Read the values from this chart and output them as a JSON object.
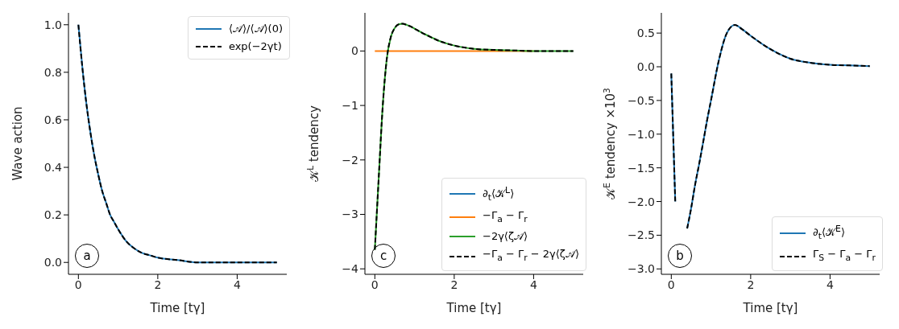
{
  "chart_data": [
    {
      "type": "line",
      "xlabel": "Time [tγ]",
      "ylabel": "Wave action",
      "annotations": [
        "a"
      ],
      "legend": "top right",
      "grid": false,
      "marker": "none",
      "xlim": [
        -0.25,
        5.25
      ],
      "xticks": [
        0,
        2,
        4
      ],
      "ylim": [
        -0.05,
        1.05
      ],
      "yticks": [
        {
          "value": 0,
          "label": "0.0"
        },
        {
          "value": 0.2,
          "label": "0.2"
        },
        {
          "value": 0.4,
          "label": "0.4"
        },
        {
          "value": 0.6,
          "label": "0.6"
        },
        {
          "value": 0.8,
          "label": "0.8"
        },
        {
          "value": 1,
          "label": "1.0"
        }
      ],
      "x": [
        0,
        0.1,
        0.2,
        0.3,
        0.4,
        0.5,
        0.6,
        0.7,
        0.8,
        0.9,
        1.0,
        1.2,
        1.4,
        1.6,
        1.8,
        2.0,
        2.5,
        3,
        3.5,
        4,
        4.5,
        5
      ],
      "series": [
        {
          "name": "⟨𝒜⟩/⟨𝒜⟩(0)",
          "color": "#1f77b4",
          "line_style": "solid",
          "values": [
            1,
            0.82,
            0.67,
            0.55,
            0.45,
            0.37,
            0.3,
            0.25,
            0.2,
            0.17,
            0.14,
            0.09,
            0.06,
            0.04,
            0.03,
            0.02,
            0.01,
            0,
            0,
            0,
            0,
            0
          ]
        },
        {
          "name": "exp(−2γt)",
          "color": "#000000",
          "line_style": "dashed",
          "values": [
            1,
            0.82,
            0.67,
            0.55,
            0.45,
            0.37,
            0.3,
            0.25,
            0.2,
            0.17,
            0.14,
            0.09,
            0.06,
            0.04,
            0.03,
            0.02,
            0.01,
            0,
            0,
            0,
            0,
            0
          ]
        }
      ]
    },
    {
      "type": "line",
      "xlabel": "Time [tγ]",
      "ylabel": "𝒦$^{L}$ tendency",
      "annotations": [
        "c"
      ],
      "legend": "bottom right",
      "grid": false,
      "marker": "none",
      "xlim": [
        -0.25,
        5.25
      ],
      "xticks": [
        0,
        2,
        4
      ],
      "ylim": [
        -4.1,
        0.7
      ],
      "yticks": [
        -4,
        -3,
        -2,
        -1,
        0
      ],
      "x": [
        0,
        0.1,
        0.2,
        0.3,
        0.4,
        0.5,
        0.6,
        0.7,
        0.8,
        0.9,
        1.0,
        1.2,
        1.4,
        1.6,
        1.8,
        2.0,
        2.5,
        3,
        3.5,
        4,
        4.5,
        5
      ],
      "series": [
        {
          "name": "∂$_{t}$⟨𝒦$^{L}$⟩",
          "color": "#1f77b4",
          "line_style": "solid",
          "values": [
            null,
            null,
            null,
            null,
            null,
            null,
            null,
            null,
            null,
            null,
            null,
            null,
            null,
            null,
            null,
            null,
            null,
            null,
            null,
            null,
            null,
            null
          ]
        },
        {
          "name": "−Γ$_{a}$ − Γ$_{r}$",
          "color": "#ff7f0e",
          "line_style": "solid",
          "values": [
            0,
            0,
            0,
            0,
            0,
            0,
            0,
            0,
            0,
            0,
            0,
            0,
            0,
            0,
            0,
            0,
            0,
            0,
            0,
            0,
            null,
            null
          ]
        },
        {
          "name": "−2γ⟨ζ𝒜⟩",
          "color": "#2ca02c",
          "line_style": "solid",
          "values": [
            -3.65,
            -2.3,
            -1.0,
            -0.15,
            0.25,
            0.42,
            0.49,
            0.5,
            0.48,
            0.45,
            0.41,
            0.33,
            0.26,
            0.19,
            0.14,
            0.1,
            0.04,
            0.02,
            0.01,
            0,
            0,
            0
          ]
        },
        {
          "name": "−Γ$_{a}$ − Γ$_{r}$ − 2γ⟨ζ𝒜⟩",
          "color": "#000000",
          "line_style": "dashed",
          "values": [
            -3.65,
            -2.3,
            -1.0,
            -0.15,
            0.25,
            0.42,
            0.49,
            0.5,
            0.48,
            0.45,
            0.41,
            0.33,
            0.26,
            0.19,
            0.14,
            0.1,
            0.04,
            0.02,
            0.01,
            0,
            0,
            0
          ]
        }
      ]
    },
    {
      "type": "line",
      "xlabel": "Time [tγ]",
      "ylabel": "𝒦$^{E}$ tendency ×10$^{3}$",
      "annotations": [
        "b"
      ],
      "legend": "bottom right",
      "grid": false,
      "marker": "none",
      "xlim": [
        -0.25,
        5.25
      ],
      "xticks": [
        0,
        2,
        4
      ],
      "ylim": [
        -3.08,
        0.8
      ],
      "yticks": [
        {
          "value": -3,
          "label": "−3.0"
        },
        {
          "value": -2.5,
          "label": "−2.5"
        },
        {
          "value": -2,
          "label": "−2.0"
        },
        {
          "value": -1.5,
          "label": "−1.5"
        },
        {
          "value": -1,
          "label": "−1.0"
        },
        {
          "value": -0.5,
          "label": "−0.5"
        },
        {
          "value": 0,
          "label": "0.0"
        },
        {
          "value": 0.5,
          "label": "0.5"
        }
      ],
      "x": [
        0,
        0.1,
        0.2,
        0.3,
        0.4,
        0.5,
        0.6,
        0.7,
        0.8,
        0.9,
        1.0,
        1.2,
        1.4,
        1.6,
        1.8,
        2.0,
        2.5,
        3,
        3.5,
        4,
        4.5,
        5
      ],
      "series": [
        {
          "name": "∂$_{t}$⟨𝒦$^{E}$⟩",
          "color": "#1f77b4",
          "line_style": "solid",
          "values": [
            -0.1,
            -2.0,
            null,
            null,
            -2.4,
            -2.1,
            -1.75,
            -1.45,
            -1.13,
            -0.8,
            -0.5,
            0.1,
            0.5,
            0.62,
            0.55,
            0.46,
            0.26,
            0.12,
            0.06,
            0.03,
            0.02,
            0.01
          ]
        },
        {
          "name": "Γ$_{S}$ − Γ$_{a}$ − Γ$_{r}$",
          "color": "#000000",
          "line_style": "dashed",
          "values": [
            -0.1,
            -2.0,
            null,
            null,
            -2.4,
            -2.1,
            -1.75,
            -1.45,
            -1.13,
            -0.8,
            -0.5,
            0.1,
            0.5,
            0.62,
            0.55,
            0.46,
            0.26,
            0.12,
            0.06,
            0.03,
            0.02,
            0.01
          ]
        }
      ]
    }
  ]
}
